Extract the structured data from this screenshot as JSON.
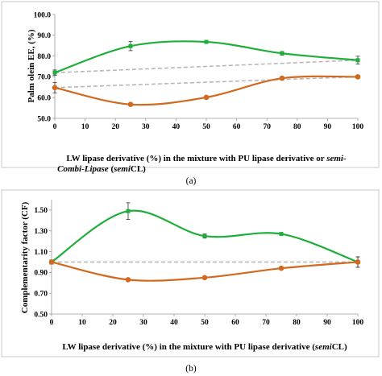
{
  "figure": {
    "panel_a_caption": "(a)",
    "panel_b_caption": "(b)"
  },
  "colors": {
    "green": "#1fae3a",
    "orange": "#d2691e",
    "dashed": "#b8b8b8",
    "frame": "#bdbdbd"
  },
  "chart_data": [
    {
      "type": "line",
      "panel": "a",
      "xlabel_parts": [
        "LW lipase derivative (%) in the mixture with PU lipase derivative or ",
        "semi-",
        "Combi-Lipase",
        " (",
        "semi",
        "CL)"
      ],
      "ylabel": "Palm olein EE, (%)",
      "x_ticks": [
        0,
        10,
        20,
        30,
        40,
        50,
        60,
        70,
        80,
        90,
        100
      ],
      "y_ticks": [
        "50.0",
        "60.0",
        "70.0",
        "80.0",
        "90.0",
        "100.0"
      ],
      "xlim": [
        0,
        100
      ],
      "ylim": [
        50,
        100
      ],
      "grid": false,
      "series": [
        {
          "color_key": "green",
          "marker": "square",
          "curve": "smooth",
          "x": [
            0,
            25,
            50,
            75,
            100
          ],
          "y": [
            72.0,
            84.8,
            86.8,
            81.3,
            78.0
          ],
          "error": [
            1.3,
            2.2,
            0.6,
            0.9,
            1.9
          ]
        },
        {
          "color_key": "orange",
          "marker": "circle",
          "curve": "smooth",
          "x": [
            0,
            25,
            50,
            75,
            100
          ],
          "y": [
            64.8,
            56.7,
            60.1,
            69.3,
            70.0
          ],
          "error": [
            2.5,
            0.8,
            0.8,
            0.8,
            0.8
          ]
        }
      ],
      "reference_lines": [
        {
          "x": [
            0,
            100
          ],
          "y": [
            72.0,
            78.0
          ]
        },
        {
          "x": [
            0,
            100
          ],
          "y": [
            64.8,
            70.0
          ]
        }
      ]
    },
    {
      "type": "line",
      "panel": "b",
      "xlabel_parts": [
        "LW lipase derivative (%) in the mixture with PU lipase derivative (",
        "semi",
        "CL)"
      ],
      "ylabel": "Complementarity factor  (CF)",
      "x_ticks": [
        0,
        10,
        20,
        30,
        40,
        50,
        60,
        70,
        80,
        90,
        100
      ],
      "y_ticks": [
        "0.50",
        "0.70",
        "0.90",
        "1.10",
        "1.30",
        "1.50"
      ],
      "xlim": [
        0,
        100
      ],
      "ylim": [
        0.5,
        1.6
      ],
      "grid": false,
      "series": [
        {
          "color_key": "green",
          "marker": "square",
          "curve": "smooth",
          "x": [
            0,
            25,
            50,
            75,
            100
          ],
          "y": [
            1.0,
            1.49,
            1.25,
            1.27,
            1.0
          ],
          "error": [
            0.02,
            0.08,
            0.02,
            0.01,
            0.05
          ]
        },
        {
          "color_key": "orange",
          "marker": "circle",
          "curve": "smooth",
          "x": [
            0,
            25,
            50,
            75,
            100
          ],
          "y": [
            1.0,
            0.83,
            0.85,
            0.94,
            1.0
          ],
          "error": [
            0.02,
            0.01,
            0.01,
            0.01,
            0.05
          ]
        }
      ],
      "reference_lines": [
        {
          "x": [
            0,
            100
          ],
          "y": [
            1.0,
            1.0
          ]
        }
      ]
    }
  ]
}
